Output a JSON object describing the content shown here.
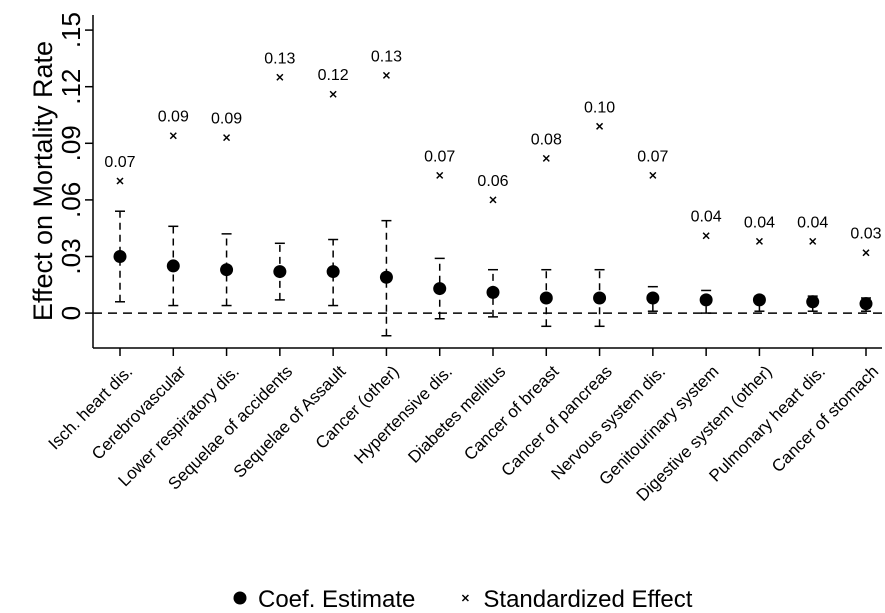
{
  "chart_data": {
    "type": "errorbar-scatter",
    "y_label": "Effect on Mortality Rate",
    "categories": [
      "Isch. heart dis.",
      "Cerebrovascular",
      "Lower respiratory dis.",
      "Sequelae of accidents",
      "Sequelae of Assault",
      "Cancer (other)",
      "Hypertensive dis.",
      "Diabetes mellitus",
      "Cancer of breast",
      "Cancer of pancreas",
      "Nervous system dis.",
      "Genitourinary system",
      "Digestive system (other)",
      "Pulmonary heart dis.",
      "Cancer of stomach"
    ],
    "series": [
      {
        "name": "Coef. Estimate",
        "color": "#000000",
        "marker": "circle",
        "values": [
          0.03,
          0.025,
          0.023,
          0.022,
          0.022,
          0.019,
          0.013,
          0.011,
          0.008,
          0.008,
          0.008,
          0.007,
          0.007,
          0.006,
          0.005
        ],
        "lower": [
          0.006,
          0.004,
          0.004,
          0.007,
          0.004,
          -0.012,
          -0.003,
          -0.002,
          -0.007,
          -0.007,
          0.001,
          0.0,
          0.001,
          0.001,
          0.001
        ],
        "upper": [
          0.054,
          0.046,
          0.042,
          0.037,
          0.039,
          0.049,
          0.029,
          0.023,
          0.023,
          0.023,
          0.014,
          0.012,
          0.009,
          0.009,
          0.008
        ]
      },
      {
        "name": "Standardized Effect",
        "color": "#000000",
        "marker": "x",
        "values": [
          0.07,
          0.094,
          0.093,
          0.125,
          0.116,
          0.126,
          0.073,
          0.06,
          0.082,
          0.099,
          0.073,
          0.041,
          0.038,
          0.038,
          0.032
        ],
        "value_labels": [
          "0.07",
          "0.09",
          "0.09",
          "0.13",
          "0.12",
          "0.13",
          "0.07",
          "0.06",
          "0.08",
          "0.10",
          "0.07",
          "0.04",
          "0.04",
          "0.04",
          "0.03"
        ]
      }
    ],
    "ylim": [
      -0.0185,
      0.158
    ],
    "yticks": [
      0,
      {
        "value": 0.03,
        "label": ".03"
      },
      {
        "value": 0.06,
        "label": ".06"
      },
      {
        "value": 0.09,
        "label": ".09"
      },
      {
        "value": 0.12,
        "label": ".12"
      },
      {
        "value": 0.15,
        "label": ".15"
      }
    ],
    "reference_line": 0,
    "legend": "bottom"
  }
}
